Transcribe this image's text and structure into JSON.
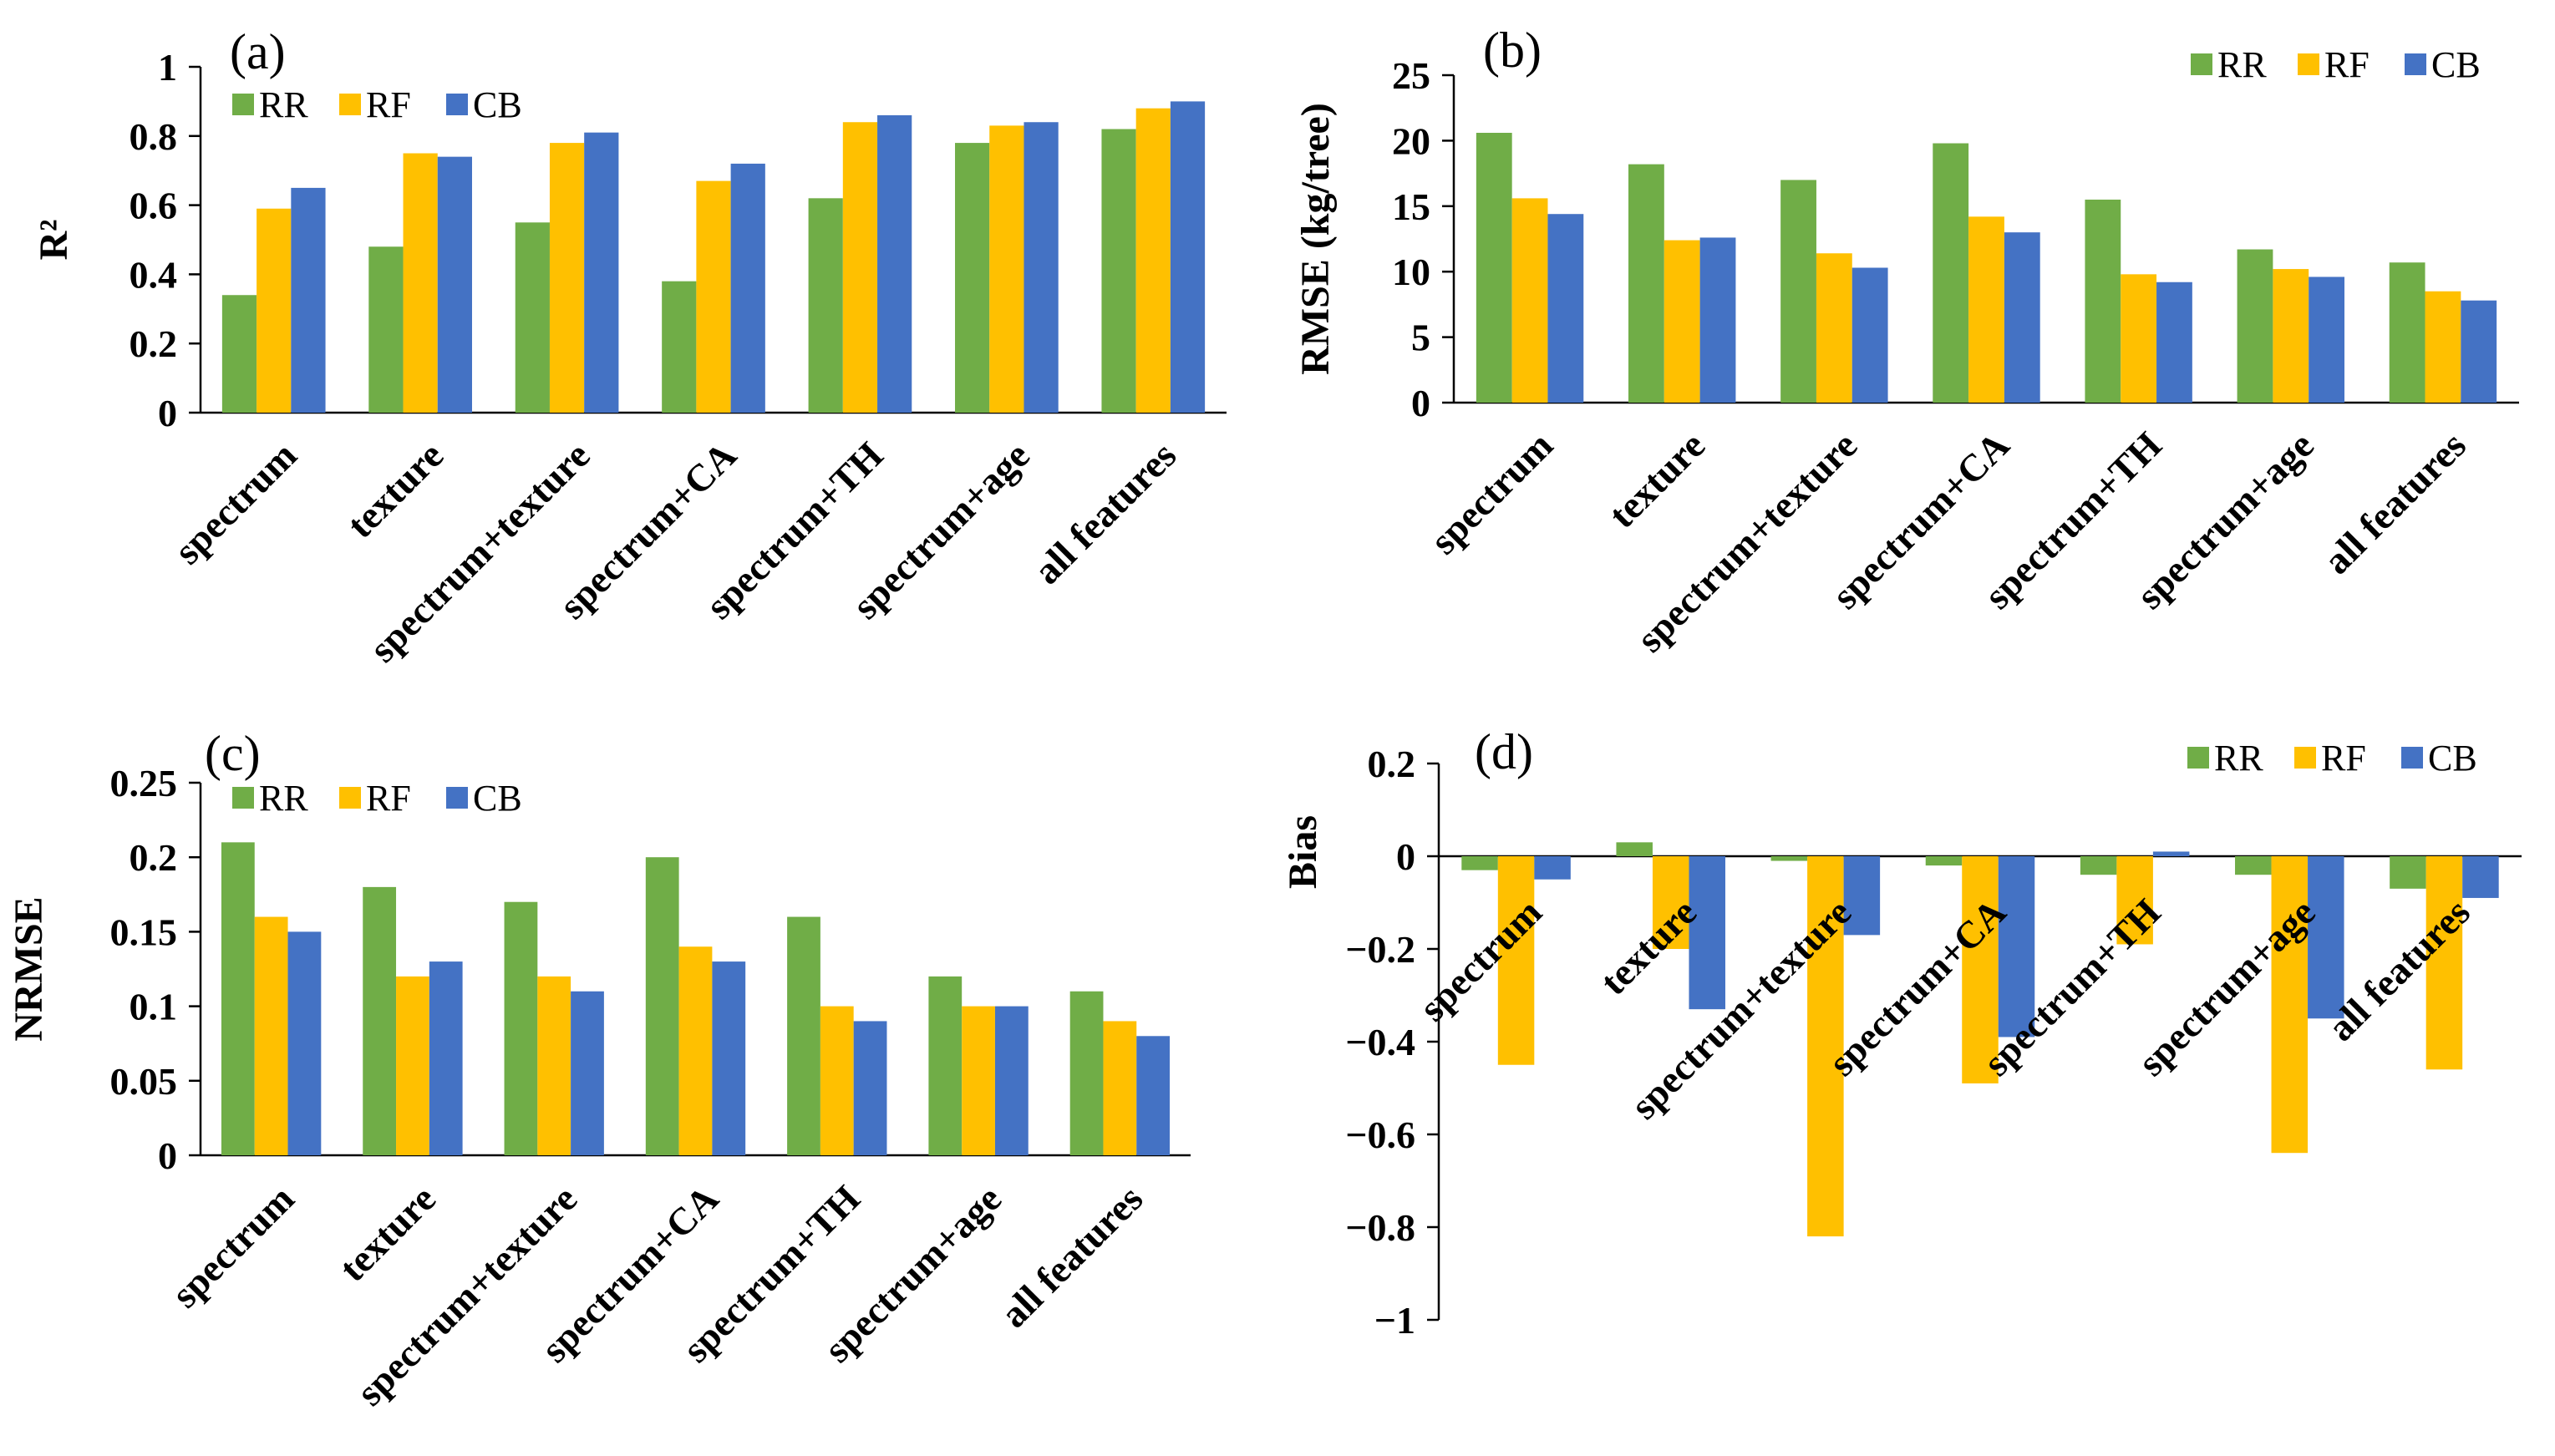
{
  "figure_title": "",
  "chart_data": [
    {
      "panel": "(a)",
      "type": "bar",
      "title": "",
      "ylabel": "R²",
      "xlabel": "",
      "ylim": [
        0,
        1
      ],
      "yticks": [
        "0",
        "0.2",
        "0.4",
        "0.6",
        "0.8",
        "1"
      ],
      "legend_position": "top-left",
      "categories": [
        "spectrum",
        "texture",
        "spectrum+texture",
        "spectrum+CA",
        "spectrum+TH",
        "spectrum+age",
        "all features"
      ],
      "series": [
        {
          "name": "RR",
          "color": "#70ad47",
          "values": [
            0.34,
            0.48,
            0.55,
            0.38,
            0.62,
            0.78,
            0.82
          ]
        },
        {
          "name": "RF",
          "color": "#ffc000",
          "values": [
            0.59,
            0.75,
            0.78,
            0.67,
            0.84,
            0.83,
            0.88
          ]
        },
        {
          "name": "CB",
          "color": "#4472c4",
          "values": [
            0.65,
            0.74,
            0.81,
            0.72,
            0.86,
            0.84,
            0.9
          ]
        }
      ]
    },
    {
      "panel": "(b)",
      "type": "bar",
      "title": "",
      "ylabel": "RMSE (kg/tree)",
      "xlabel": "",
      "ylim": [
        0,
        25
      ],
      "yticks": [
        "0",
        "5",
        "10",
        "15",
        "20",
        "25"
      ],
      "legend_position": "top-right",
      "categories": [
        "spectrum",
        "texture",
        "spectrum+texture",
        "spectrum+CA",
        "spectrum+TH",
        "spectrum+age",
        "all features"
      ],
      "series": [
        {
          "name": "RR",
          "color": "#70ad47",
          "values": [
            20.6,
            18.2,
            17.0,
            19.8,
            15.5,
            11.7,
            10.7
          ]
        },
        {
          "name": "RF",
          "color": "#ffc000",
          "values": [
            15.6,
            12.4,
            11.4,
            14.2,
            9.8,
            10.2,
            8.5
          ]
        },
        {
          "name": "CB",
          "color": "#4472c4",
          "values": [
            14.4,
            12.6,
            10.3,
            13.0,
            9.2,
            9.6,
            7.8
          ]
        }
      ]
    },
    {
      "panel": "(c)",
      "type": "bar",
      "title": "",
      "ylabel": "NRMSE",
      "xlabel": "",
      "ylim": [
        0,
        0.25
      ],
      "yticks": [
        "0",
        "0.05",
        "0.1",
        "0.15",
        "0.2",
        "0.25"
      ],
      "legend_position": "top-left",
      "categories": [
        "spectrum",
        "texture",
        "spectrum+texture",
        "spectrum+CA",
        "spectrum+TH",
        "spectrum+age",
        "all features"
      ],
      "series": [
        {
          "name": "RR",
          "color": "#70ad47",
          "values": [
            0.21,
            0.18,
            0.17,
            0.2,
            0.16,
            0.12,
            0.11
          ]
        },
        {
          "name": "RF",
          "color": "#ffc000",
          "values": [
            0.16,
            0.12,
            0.12,
            0.14,
            0.1,
            0.1,
            0.09
          ]
        },
        {
          "name": "CB",
          "color": "#4472c4",
          "values": [
            0.15,
            0.13,
            0.11,
            0.13,
            0.09,
            0.1,
            0.08
          ]
        }
      ]
    },
    {
      "panel": "(d)",
      "type": "bar",
      "title": "",
      "ylabel": "Bias",
      "xlabel": "",
      "ylim": [
        -1,
        0.2
      ],
      "yticks": [
        "−1",
        "−0.8",
        "−0.6",
        "−0.4",
        "−0.2",
        "0",
        "0.2"
      ],
      "legend_position": "top-right",
      "categories": [
        "spectrum",
        "texture",
        "spectrum+texture",
        "spectrum+CA",
        "spectrum+TH",
        "spectrum+age",
        "all features"
      ],
      "series": [
        {
          "name": "RR",
          "color": "#70ad47",
          "values": [
            -0.03,
            0.03,
            -0.01,
            -0.02,
            -0.04,
            -0.04,
            -0.07
          ]
        },
        {
          "name": "RF",
          "color": "#ffc000",
          "values": [
            -0.45,
            -0.2,
            -0.82,
            -0.49,
            -0.19,
            -0.64,
            -0.46
          ]
        },
        {
          "name": "CB",
          "color": "#4472c4",
          "values": [
            -0.05,
            -0.33,
            -0.17,
            -0.39,
            0.01,
            -0.35,
            -0.09
          ]
        }
      ]
    }
  ]
}
